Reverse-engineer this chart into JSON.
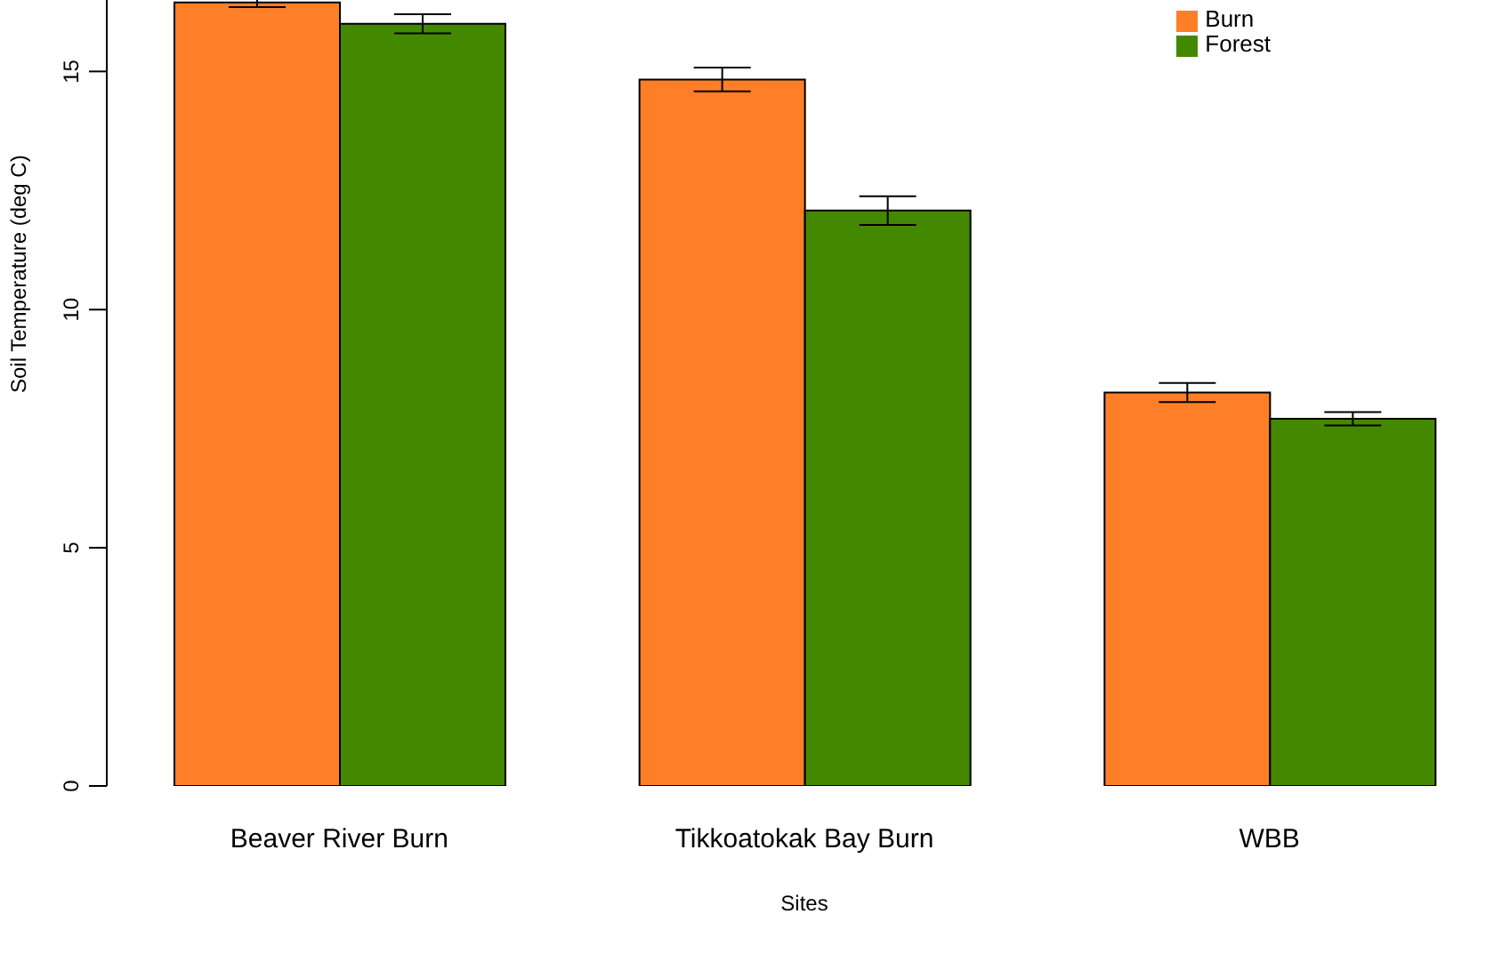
{
  "chart_data": {
    "type": "bar",
    "xlabel": "Sites",
    "ylabel": "Soil Temperature (deg C)",
    "categories": [
      "Beaver River Burn",
      "Tikkoatokak Bay Burn",
      "WBB"
    ],
    "series": [
      {
        "name": "Burn",
        "color": "#fe7f27",
        "values": [
          16.45,
          14.83,
          8.26
        ],
        "errors": [
          0.1,
          0.25,
          0.2
        ]
      },
      {
        "name": "Forest",
        "color": "#448800",
        "values": [
          16.0,
          12.08,
          7.71
        ],
        "errors": [
          0.2,
          0.3,
          0.14
        ]
      }
    ],
    "ylim": [
      0,
      16.5
    ],
    "yticks": [
      0,
      5,
      10,
      15
    ],
    "grid": false,
    "legend": "top right"
  }
}
